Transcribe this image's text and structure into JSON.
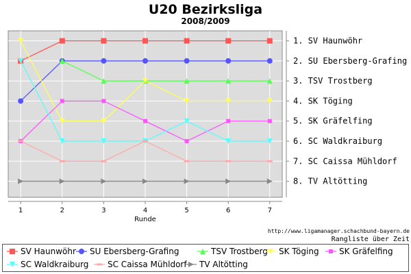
{
  "title": "U20 Bezirksliga",
  "subtitle": "2008/2009",
  "source_url": "http://www.ligamanager.schachbund-bayern.de",
  "caption": "Rangliste über Zeit",
  "chart_data": {
    "type": "line",
    "xlabel": "Runde",
    "ylabel": "",
    "x": [
      1,
      2,
      3,
      4,
      5,
      6,
      7
    ],
    "xlim": [
      0.7,
      7.3
    ],
    "ylim": [
      8.8,
      0.5
    ],
    "y_inverted": true,
    "grid": true,
    "background": "#dddddd",
    "rank_labels": [
      "1. SV Haunwöhr",
      "2. SU Ebersberg-Grafing",
      "3. TSV Trostberg",
      "4. SK Töging",
      "5. SK Gräfelfing",
      "6. SC Waldkraiburg",
      "7. SC Caissa Mühldorf",
      "8. TV Altötting"
    ],
    "legend_position": "bottom",
    "series": [
      {
        "name": "SV Haunwöhr",
        "color": "#ff5555",
        "marker": "square",
        "values": [
          2,
          1,
          1,
          1,
          1,
          1,
          1
        ]
      },
      {
        "name": "SU Ebersberg-Grafing",
        "color": "#5555ff",
        "marker": "circle",
        "values": [
          4,
          2,
          2,
          2,
          2,
          2,
          2
        ]
      },
      {
        "name": "TSV Trostberg",
        "color": "#55ff55",
        "marker": "triangle-up",
        "values": [
          null,
          2,
          3,
          3,
          3,
          3,
          3
        ]
      },
      {
        "name": "SK Töging",
        "color": "#ffff55",
        "marker": "triangle-down",
        "values": [
          1,
          5,
          5,
          3,
          4,
          4,
          4
        ]
      },
      {
        "name": "SK Gräfelfing",
        "color": "#ff55ff",
        "marker": "square-small",
        "values": [
          6,
          4,
          4,
          5,
          6,
          5,
          5
        ]
      },
      {
        "name": "SC Waldkraiburg",
        "color": "#55ffff",
        "marker": "triangle-down",
        "values": [
          2,
          6,
          6,
          6,
          5,
          6,
          6
        ]
      },
      {
        "name": "SC Caissa Mühldorf",
        "color": "#ffaaaa",
        "marker": "dash",
        "values": [
          6,
          7,
          7,
          6,
          7,
          7,
          7
        ]
      },
      {
        "name": "TV Altötting",
        "color": "#888888",
        "marker": "triangle-right",
        "values": [
          8,
          8,
          8,
          8,
          8,
          8,
          8
        ]
      }
    ]
  }
}
